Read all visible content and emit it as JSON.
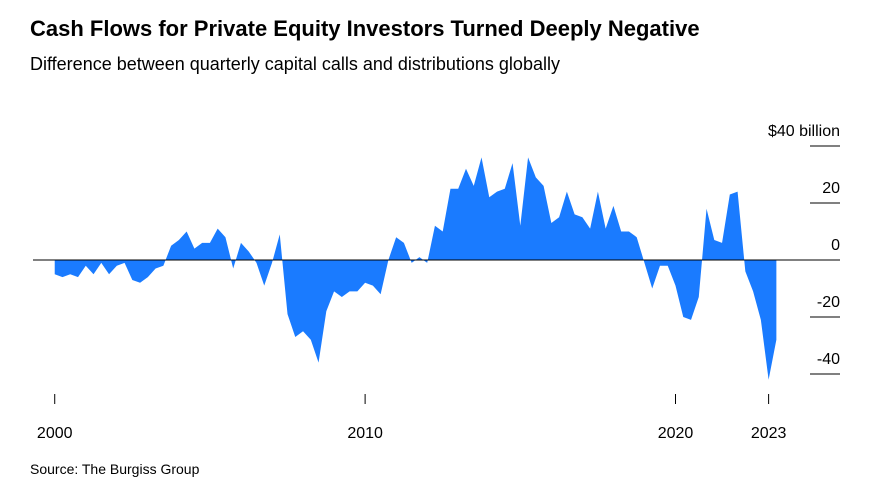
{
  "chart_data": {
    "type": "area",
    "title": "Cash Flows for Private Equity Investors Turned Deeply Negative",
    "subtitle": "Difference between quarterly capital calls and distributions globally",
    "source": "Source: The Burgiss Group",
    "x": [
      2000,
      2000.25,
      2000.5,
      2000.75,
      2001,
      2001.25,
      2001.5,
      2001.75,
      2002,
      2002.25,
      2002.5,
      2002.75,
      2003,
      2003.25,
      2003.5,
      2003.75,
      2004,
      2004.25,
      2004.5,
      2004.75,
      2005,
      2005.25,
      2005.5,
      2005.75,
      2006,
      2006.25,
      2006.5,
      2006.75,
      2007,
      2007.25,
      2007.5,
      2007.75,
      2008,
      2008.25,
      2008.5,
      2008.75,
      2009,
      2009.25,
      2009.5,
      2009.75,
      2010,
      2010.25,
      2010.5,
      2010.75,
      2011,
      2011.25,
      2011.5,
      2011.75,
      2012,
      2012.25,
      2012.5,
      2012.75,
      2013,
      2013.25,
      2013.5,
      2013.75,
      2014,
      2014.25,
      2014.5,
      2014.75,
      2015,
      2015.25,
      2015.5,
      2015.75,
      2016,
      2016.25,
      2016.5,
      2016.75,
      2017,
      2017.25,
      2017.5,
      2017.75,
      2018,
      2018.25,
      2018.5,
      2018.75,
      2019,
      2019.25,
      2019.5,
      2019.75,
      2020,
      2020.25,
      2020.5,
      2020.75,
      2021,
      2021.25,
      2021.5,
      2021.75,
      2022,
      2022.25,
      2022.5,
      2022.75,
      2023,
      2023.25
    ],
    "series": [
      {
        "color": "#1a7bff",
        "values": [
          -5,
          -6,
          -5,
          -6,
          -2,
          -5,
          -1,
          -5,
          -2,
          -1,
          -7,
          -8,
          -6,
          -3,
          -2,
          5,
          7,
          10,
          4,
          6,
          6,
          11,
          8,
          -3,
          6,
          3,
          -1,
          -9,
          -1,
          9,
          -19,
          -27,
          -25,
          -28,
          -36,
          -18,
          -11,
          -13,
          -11,
          -11,
          -8,
          -9,
          -12,
          0,
          8,
          6,
          -1,
          1,
          -1,
          12,
          10,
          25,
          25,
          32,
          26,
          36,
          22,
          24,
          25,
          34,
          12,
          36,
          29,
          26,
          13,
          15,
          24,
          16,
          15,
          11,
          24,
          11,
          19,
          10,
          10,
          8,
          -1,
          -10,
          -2,
          -2,
          -9,
          -20,
          -21,
          -13,
          18,
          7,
          6,
          23,
          24,
          -4,
          -11,
          -21,
          -42,
          -28
        ]
      }
    ],
    "xlim": [
      1999.3,
      2025.3
    ],
    "xticks": [
      2000,
      2010,
      2020,
      2023
    ],
    "ylim": [
      -45,
      40
    ],
    "yticks": [
      {
        "value": 40,
        "label": "$40 billion"
      },
      20,
      0,
      -20,
      -40
    ]
  }
}
